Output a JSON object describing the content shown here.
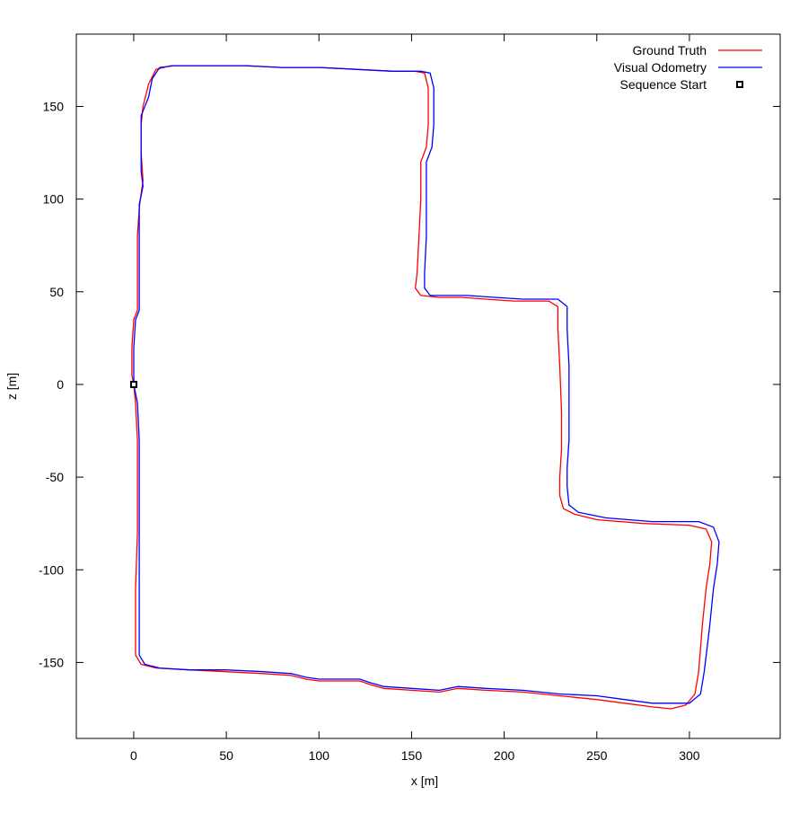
{
  "chart_data": {
    "type": "line",
    "title": "",
    "xlabel": "x [m]",
    "ylabel": "z [m]",
    "xlim": [
      -31,
      349
    ],
    "ylim": [
      -191,
      189
    ],
    "xticks": [
      0,
      50,
      100,
      150,
      200,
      250,
      300
    ],
    "yticks": [
      -150,
      -100,
      -50,
      0,
      50,
      100,
      150
    ],
    "grid": false,
    "legend_position": "top-right",
    "series": [
      {
        "name": "Ground Truth",
        "color": "#ff0000",
        "points": [
          [
            0,
            0
          ],
          [
            1,
            -10
          ],
          [
            2,
            -30
          ],
          [
            2,
            -50
          ],
          [
            2,
            -80
          ],
          [
            1,
            -110
          ],
          [
            1,
            -130
          ],
          [
            1,
            -146
          ],
          [
            4,
            -151
          ],
          [
            12,
            -153
          ],
          [
            30,
            -154
          ],
          [
            50,
            -155
          ],
          [
            70,
            -156
          ],
          [
            85,
            -157
          ],
          [
            93,
            -159
          ],
          [
            100,
            -160
          ],
          [
            110,
            -160
          ],
          [
            122,
            -160
          ],
          [
            128,
            -162
          ],
          [
            135,
            -164
          ],
          [
            150,
            -165
          ],
          [
            165,
            -166
          ],
          [
            175,
            -164
          ],
          [
            190,
            -165
          ],
          [
            210,
            -166
          ],
          [
            230,
            -168
          ],
          [
            250,
            -170
          ],
          [
            265,
            -172
          ],
          [
            280,
            -174
          ],
          [
            290,
            -175
          ],
          [
            298,
            -173
          ],
          [
            303,
            -167
          ],
          [
            305,
            -155
          ],
          [
            307,
            -130
          ],
          [
            309,
            -110
          ],
          [
            311,
            -97
          ],
          [
            312,
            -85
          ],
          [
            309,
            -78
          ],
          [
            300,
            -76
          ],
          [
            275,
            -75
          ],
          [
            250,
            -73
          ],
          [
            238,
            -70
          ],
          [
            232,
            -67
          ],
          [
            230,
            -60
          ],
          [
            230,
            -50
          ],
          [
            231,
            -35
          ],
          [
            231,
            -15
          ],
          [
            230,
            10
          ],
          [
            229,
            30
          ],
          [
            229,
            42
          ],
          [
            224,
            45
          ],
          [
            205,
            45
          ],
          [
            190,
            46
          ],
          [
            177,
            47
          ],
          [
            165,
            47
          ],
          [
            155,
            48
          ],
          [
            152,
            52
          ],
          [
            153,
            60
          ],
          [
            154,
            80
          ],
          [
            155,
            100
          ],
          [
            155,
            120
          ],
          [
            158,
            128
          ],
          [
            159,
            140
          ],
          [
            159,
            160
          ],
          [
            157,
            168
          ],
          [
            152,
            169
          ],
          [
            140,
            169
          ],
          [
            120,
            170
          ],
          [
            100,
            171
          ],
          [
            80,
            171
          ],
          [
            60,
            172
          ],
          [
            40,
            172
          ],
          [
            20,
            172
          ],
          [
            12,
            170
          ],
          [
            8,
            162
          ],
          [
            5,
            150
          ],
          [
            4,
            140
          ],
          [
            4,
            125
          ],
          [
            5,
            110
          ],
          [
            4,
            103
          ],
          [
            3,
            95
          ],
          [
            2,
            80
          ],
          [
            2,
            60
          ],
          [
            2,
            40
          ],
          [
            0,
            35
          ],
          [
            -1,
            20
          ],
          [
            -1,
            5
          ],
          [
            0,
            0
          ]
        ]
      },
      {
        "name": "Visual Odometry",
        "color": "#0000ff",
        "points": [
          [
            0,
            0
          ],
          [
            2,
            -10
          ],
          [
            3,
            -30
          ],
          [
            3,
            -50
          ],
          [
            3,
            -80
          ],
          [
            3,
            -110
          ],
          [
            3,
            -130
          ],
          [
            3,
            -146
          ],
          [
            6,
            -151
          ],
          [
            14,
            -153
          ],
          [
            30,
            -154
          ],
          [
            50,
            -154
          ],
          [
            70,
            -155
          ],
          [
            85,
            -156
          ],
          [
            93,
            -158
          ],
          [
            100,
            -159
          ],
          [
            110,
            -159
          ],
          [
            122,
            -159
          ],
          [
            128,
            -161
          ],
          [
            135,
            -163
          ],
          [
            150,
            -164
          ],
          [
            165,
            -165
          ],
          [
            175,
            -163
          ],
          [
            190,
            -164
          ],
          [
            210,
            -165
          ],
          [
            230,
            -167
          ],
          [
            250,
            -168
          ],
          [
            265,
            -170
          ],
          [
            280,
            -172
          ],
          [
            290,
            -172
          ],
          [
            300,
            -172
          ],
          [
            306,
            -167
          ],
          [
            308,
            -155
          ],
          [
            311,
            -130
          ],
          [
            313,
            -110
          ],
          [
            315,
            -97
          ],
          [
            316,
            -85
          ],
          [
            313,
            -77
          ],
          [
            305,
            -74
          ],
          [
            280,
            -74
          ],
          [
            255,
            -72
          ],
          [
            240,
            -69
          ],
          [
            235,
            -65
          ],
          [
            234,
            -55
          ],
          [
            234,
            -45
          ],
          [
            235,
            -30
          ],
          [
            235,
            -10
          ],
          [
            235,
            10
          ],
          [
            234,
            30
          ],
          [
            234,
            42
          ],
          [
            229,
            46
          ],
          [
            210,
            46
          ],
          [
            195,
            47
          ],
          [
            180,
            48
          ],
          [
            168,
            48
          ],
          [
            160,
            48
          ],
          [
            157,
            52
          ],
          [
            157,
            60
          ],
          [
            158,
            80
          ],
          [
            158,
            100
          ],
          [
            158,
            120
          ],
          [
            161,
            128
          ],
          [
            162,
            140
          ],
          [
            162,
            160
          ],
          [
            160,
            168
          ],
          [
            155,
            169
          ],
          [
            140,
            169
          ],
          [
            120,
            170
          ],
          [
            100,
            171
          ],
          [
            80,
            171
          ],
          [
            60,
            172
          ],
          [
            40,
            172
          ],
          [
            22,
            172
          ],
          [
            14,
            171
          ],
          [
            10,
            165
          ],
          [
            8,
            155
          ],
          [
            4,
            145
          ],
          [
            4,
            130
          ],
          [
            4,
            115
          ],
          [
            5,
            107
          ],
          [
            3,
            97
          ],
          [
            3,
            80
          ],
          [
            3,
            60
          ],
          [
            3,
            40
          ],
          [
            1,
            35
          ],
          [
            0,
            20
          ],
          [
            0,
            5
          ],
          [
            0,
            0
          ]
        ]
      }
    ],
    "markers": [
      {
        "name": "Sequence Start",
        "x": 0,
        "y": 0,
        "shape": "square",
        "color": "#000000"
      }
    ]
  }
}
